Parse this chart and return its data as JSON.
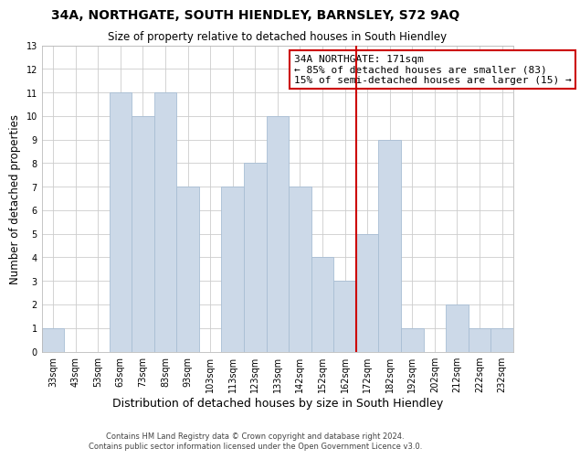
{
  "title": "34A, NORTHGATE, SOUTH HIENDLEY, BARNSLEY, S72 9AQ",
  "subtitle": "Size of property relative to detached houses in South Hiendley",
  "xlabel": "Distribution of detached houses by size in South Hiendley",
  "ylabel": "Number of detached properties",
  "bar_labels": [
    "33sqm",
    "43sqm",
    "53sqm",
    "63sqm",
    "73sqm",
    "83sqm",
    "93sqm",
    "103sqm",
    "113sqm",
    "123sqm",
    "133sqm",
    "142sqm",
    "152sqm",
    "162sqm",
    "172sqm",
    "182sqm",
    "192sqm",
    "202sqm",
    "212sqm",
    "222sqm",
    "232sqm"
  ],
  "bar_values": [
    1,
    0,
    0,
    11,
    10,
    11,
    7,
    0,
    7,
    8,
    10,
    7,
    4,
    3,
    5,
    9,
    1,
    0,
    2,
    1,
    1
  ],
  "bar_color": "#ccd9e8",
  "bar_edge_color": "#a8bed4",
  "ylim": [
    0,
    13
  ],
  "yticks": [
    0,
    1,
    2,
    3,
    4,
    5,
    6,
    7,
    8,
    9,
    10,
    11,
    12,
    13
  ],
  "vline_index": 13.5,
  "vline_color": "#cc0000",
  "annotation_title": "34A NORTHGATE: 171sqm",
  "annotation_line1": "← 85% of detached houses are smaller (83)",
  "annotation_line2": "15% of semi-detached houses are larger (15) →",
  "annotation_box_color": "#ffffff",
  "annotation_box_edge": "#cc0000",
  "footer_line1": "Contains HM Land Registry data © Crown copyright and database right 2024.",
  "footer_line2": "Contains public sector information licensed under the Open Government Licence v3.0.",
  "background_color": "#ffffff",
  "grid_color": "#cccccc",
  "title_fontsize": 10,
  "subtitle_fontsize": 8.5,
  "ylabel_fontsize": 8.5,
  "xlabel_fontsize": 9,
  "tick_fontsize": 7,
  "annotation_fontsize": 8,
  "footer_fontsize": 6
}
